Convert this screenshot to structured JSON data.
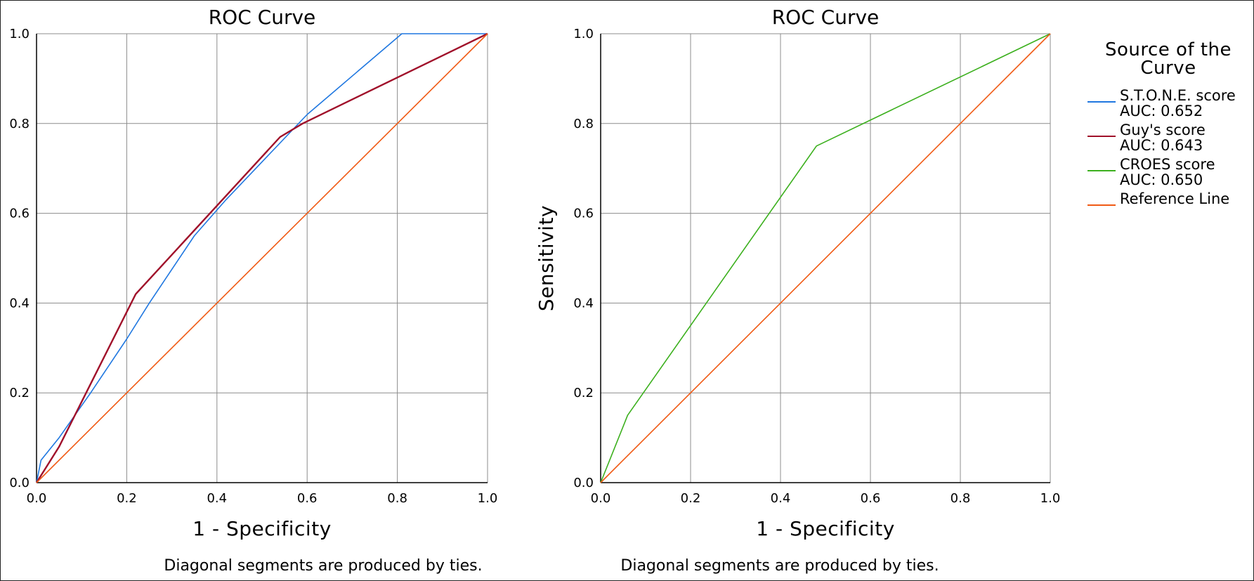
{
  "chart_data": [
    {
      "type": "line",
      "title": "ROC Curve",
      "xlabel": "1 - Specificity",
      "ylabel": "",
      "xlim": [
        0,
        1
      ],
      "ylim": [
        0,
        1
      ],
      "x_ticks": [
        "0.0",
        "0.2",
        "0.4",
        "0.6",
        "0.8",
        "1.0"
      ],
      "y_ticks": [
        "0.0",
        "0.2",
        "0.4",
        "0.6",
        "0.8",
        "1.0"
      ],
      "grid": true,
      "footnote": "Diagonal segments are produced by ties.",
      "series": [
        {
          "name": "S.T.O.N.E. score",
          "color": "#1f77e0",
          "x": [
            0,
            0.01,
            0.05,
            0.12,
            0.2,
            0.25,
            0.35,
            0.42,
            0.6,
            0.81,
            0.82,
            1.0
          ],
          "y": [
            0,
            0.05,
            0.1,
            0.2,
            0.32,
            0.4,
            0.55,
            0.63,
            0.82,
            1.0,
            1.0,
            1.0
          ]
        },
        {
          "name": "Guy's score",
          "color": "#a0102a",
          "x": [
            0,
            0.05,
            0.11,
            0.22,
            0.54,
            0.59,
            1.0
          ],
          "y": [
            0,
            0.08,
            0.2,
            0.42,
            0.77,
            0.8,
            1.0
          ]
        },
        {
          "name": "Reference Line",
          "color": "#f05a14",
          "x": [
            0,
            1
          ],
          "y": [
            0,
            1
          ]
        }
      ]
    },
    {
      "type": "line",
      "title": "ROC Curve",
      "xlabel": "1 - Specificity",
      "ylabel": "Sensitivity",
      "xlim": [
        0,
        1
      ],
      "ylim": [
        0,
        1
      ],
      "x_ticks": [
        "0.0",
        "0.2",
        "0.4",
        "0.6",
        "0.8",
        "1.0"
      ],
      "y_ticks": [
        "0.0",
        "0.2",
        "0.4",
        "0.6",
        "0.8",
        "1.0"
      ],
      "grid": true,
      "footnote": "Diagonal segments are produced by ties.",
      "series": [
        {
          "name": "CROES score",
          "color": "#3cb01e",
          "x": [
            0,
            0.06,
            0.48,
            1.0
          ],
          "y": [
            0,
            0.15,
            0.75,
            1.0
          ]
        },
        {
          "name": "Reference Line",
          "color": "#f05a14",
          "x": [
            0,
            1
          ],
          "y": [
            0,
            1
          ]
        }
      ]
    }
  ],
  "legend": {
    "title_line1": "Source of the",
    "title_line2": "Curve",
    "placement": "right",
    "items": [
      {
        "label": "S.T.O.N.E. score",
        "sub": "AUC: 0.652",
        "color": "#1f77e0"
      },
      {
        "label": "Guy's score",
        "sub": "AUC: 0.643",
        "color": "#a0102a"
      },
      {
        "label": "CROES score",
        "sub": "AUC: 0.650",
        "color": "#3cb01e"
      },
      {
        "label": "Reference Line",
        "sub": "",
        "color": "#f05a14"
      }
    ]
  }
}
